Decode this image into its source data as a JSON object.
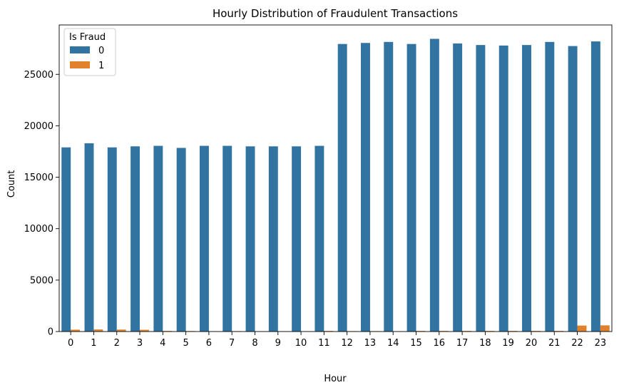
{
  "chart_data": {
    "type": "bar",
    "title": "Hourly Distribution of Fraudulent Transactions",
    "xlabel": "Hour",
    "ylabel": "Count",
    "categories": [
      "0",
      "1",
      "2",
      "3",
      "4",
      "5",
      "6",
      "7",
      "8",
      "9",
      "10",
      "11",
      "12",
      "13",
      "14",
      "15",
      "16",
      "17",
      "18",
      "19",
      "20",
      "21",
      "22",
      "23"
    ],
    "yticks": [
      0,
      5000,
      10000,
      15000,
      20000,
      25000
    ],
    "ylim": [
      0,
      29800
    ],
    "legend": {
      "title": "Is Fraud",
      "position": "top-left"
    },
    "series": [
      {
        "name": "0",
        "color": "#3274a1",
        "values": [
          17900,
          18300,
          17900,
          18000,
          18050,
          17850,
          18050,
          18050,
          18000,
          18000,
          18000,
          18050,
          27950,
          28050,
          28150,
          27950,
          28450,
          28000,
          27850,
          27800,
          27850,
          28150,
          27750,
          28200
        ]
      },
      {
        "name": "1",
        "color": "#e1812c",
        "values": [
          180,
          200,
          190,
          170,
          60,
          50,
          30,
          40,
          30,
          30,
          30,
          60,
          40,
          40,
          30,
          60,
          60,
          60,
          60,
          60,
          60,
          60,
          580,
          600
        ]
      }
    ]
  }
}
